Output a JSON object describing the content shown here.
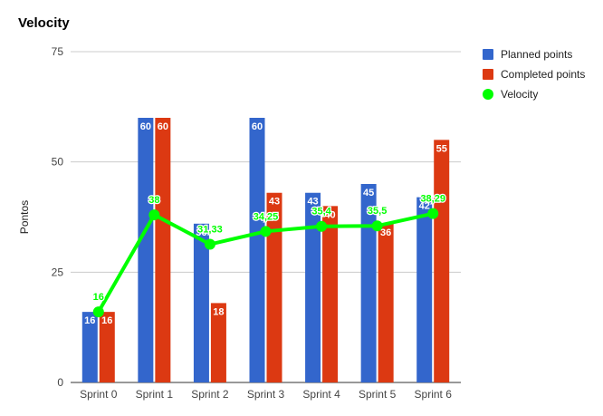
{
  "chart_data": {
    "type": "bar",
    "title": "Velocity",
    "xlabel": "",
    "ylabel": "Pontos",
    "ylim": [
      0,
      75
    ],
    "yticks": [
      "0",
      "25",
      "50",
      "75"
    ],
    "grid": true,
    "legend_position": "right",
    "categories": [
      "Sprint 0",
      "Sprint 1",
      "Sprint 2",
      "Sprint 3",
      "Sprint 4",
      "Sprint 5",
      "Sprint 6"
    ],
    "series": [
      {
        "name": "Planned points",
        "kind": "bar",
        "color": "#3366cc",
        "values": [
          16,
          60,
          36,
          60,
          43,
          45,
          42
        ],
        "labels": [
          "16",
          "60",
          "36",
          "60",
          "43",
          "45",
          "42"
        ]
      },
      {
        "name": "Completed points",
        "kind": "bar",
        "color": "#dc3912",
        "values": [
          16,
          60,
          18,
          43,
          40,
          36,
          55
        ],
        "labels": [
          "16",
          "60",
          "18",
          "43",
          "40",
          "36",
          "55"
        ]
      },
      {
        "name": "Velocity",
        "kind": "line",
        "color": "#00ff00",
        "values": [
          16,
          38,
          31.33,
          34.25,
          35.4,
          35.5,
          38.29
        ],
        "labels": [
          "16",
          "38",
          "31,33",
          "34,25",
          "35,4",
          "35,5",
          "38,29"
        ]
      }
    ]
  }
}
